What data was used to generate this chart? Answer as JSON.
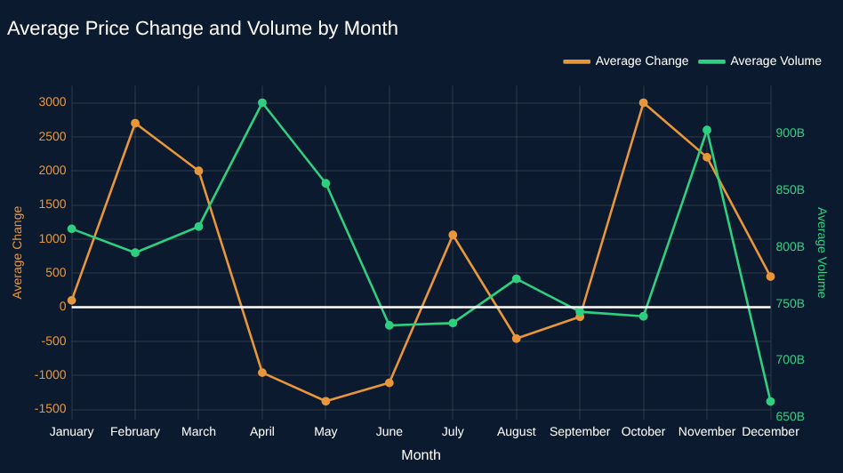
{
  "chart_data": {
    "type": "line",
    "title": "Average Price Change and Volume by Month",
    "xlabel": "Month",
    "ylabel": "Average Change",
    "y2label": "Average Volume",
    "categories": [
      "January",
      "February",
      "March",
      "April",
      "May",
      "June",
      "July",
      "August",
      "September",
      "October",
      "November",
      "December"
    ],
    "series": [
      {
        "name": "Average Change",
        "color": "#e8963a",
        "values": [
          100,
          2700,
          2000,
          -960,
          -1380,
          -1110,
          1060,
          -460,
          -140,
          3000,
          2200,
          450
        ]
      },
      {
        "name": "Average Volume",
        "color": "#2ecf7f",
        "axis": "y2",
        "values": [
          816,
          795,
          818,
          927,
          856,
          731,
          733,
          772,
          743,
          739,
          903,
          664
        ]
      }
    ],
    "ylim": [
      -1650,
      3250
    ],
    "yticks": [
      -1500,
      -1000,
      -500,
      0,
      500,
      1000,
      1500,
      2000,
      2500,
      3000
    ],
    "y2lim": [
      648,
      942
    ],
    "y2ticks": [
      {
        "value": 650,
        "label": "650B"
      },
      {
        "value": 700,
        "label": "700B"
      },
      {
        "value": 750,
        "label": "750B"
      },
      {
        "value": 800,
        "label": "800B"
      },
      {
        "value": 850,
        "label": "850B"
      },
      {
        "value": 900,
        "label": "900B"
      }
    ],
    "ref_lines": [
      {
        "axis": "y",
        "value": 0,
        "color": "#ffffff"
      }
    ],
    "grid": true,
    "legend": "top right",
    "marker": "circle",
    "line_style": "solid"
  }
}
